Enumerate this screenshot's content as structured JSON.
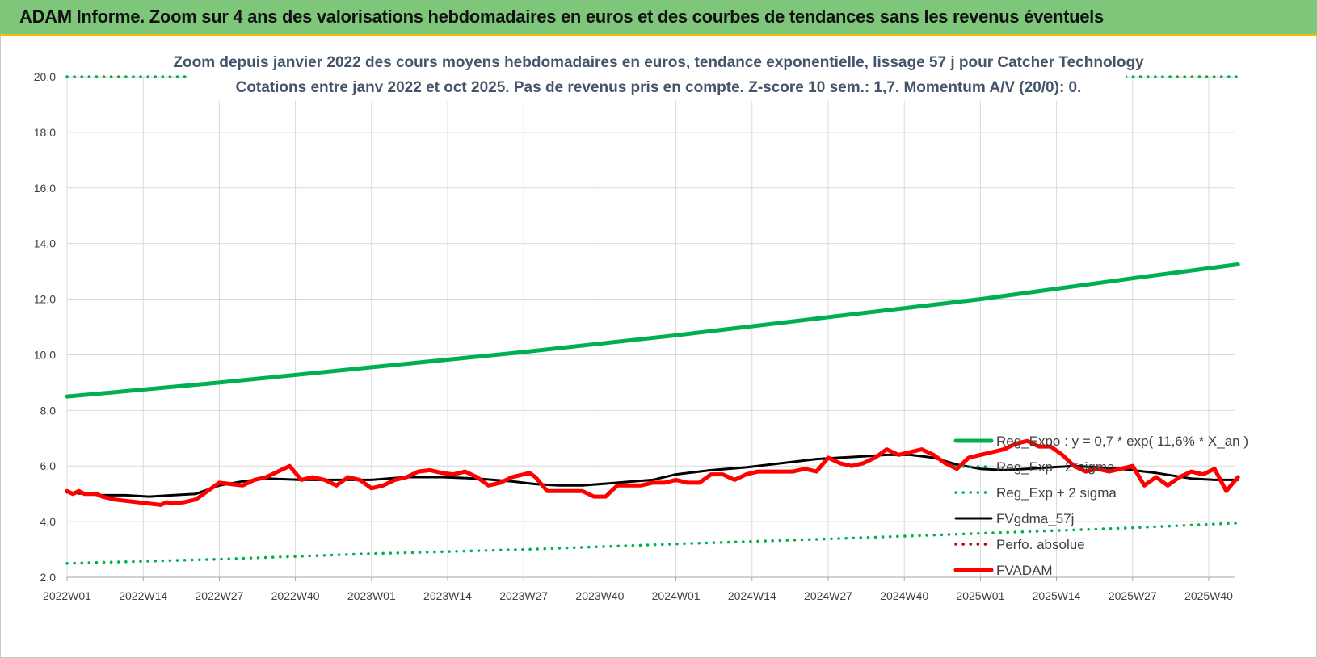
{
  "banner": {
    "title": "ADAM Informe. Zoom sur 4 ans des valorisations hebdomadaires en euros et des courbes de tendances sans les revenus éventuels"
  },
  "colors": {
    "banner_bg": "#7dc67a",
    "trend_green": "#00b050",
    "fvadam_red": "#ff0000",
    "fvgdma_black": "#000000",
    "perf_red": "#c00000",
    "grid": "#d9d9d9"
  },
  "chart_data": {
    "type": "line",
    "title_lines": [
      "Zoom depuis janvier 2022 des cours moyens hebdomadaires en euros, tendance exponentielle, lissage 57 j pour Catcher Technology",
      "Cotations entre janv 2022 et oct 2025. Pas de revenus pris en compte. Z-score 10 sem.: 1,7. Momentum A/V (20/0): 0."
    ],
    "xlabel": "",
    "ylabel": "",
    "ylim": [
      2,
      20
    ],
    "xlim": [
      0,
      195
    ],
    "yticks": [
      "2,0",
      "4,0",
      "6,0",
      "8,0",
      "10,0",
      "12,0",
      "14,0",
      "16,0",
      "18,0",
      "20,0"
    ],
    "ytick_values": [
      2,
      4,
      6,
      8,
      10,
      12,
      14,
      16,
      18,
      20
    ],
    "xticks": [
      "2022W01",
      "2022W14",
      "2022W27",
      "2022W40",
      "2023W01",
      "2023W14",
      "2023W27",
      "2023W40",
      "2024W01",
      "2024W14",
      "2024W27",
      "2024W40",
      "2025W01",
      "2025W14",
      "2025W27",
      "2025W40"
    ],
    "xtick_values": [
      0,
      13,
      26,
      39,
      52,
      65,
      78,
      91,
      104,
      117,
      130,
      143,
      156,
      169,
      182,
      195
    ],
    "grid": true,
    "legend_position": "right",
    "series": [
      {
        "name": "Reg_Expo : y = 0,7 * exp( 11,6% * X_an )",
        "style": "solid-thick",
        "color": "#00b050",
        "x": [
          0,
          26,
          52,
          78,
          104,
          130,
          156,
          182,
          200
        ],
        "values": [
          8.5,
          9.0,
          9.55,
          10.1,
          10.7,
          11.35,
          12.0,
          12.75,
          13.25
        ]
      },
      {
        "name": "Reg_Exp - 2*sigma",
        "style": "dotted",
        "color": "#00b050",
        "x": [
          0,
          26,
          52,
          78,
          104,
          130,
          156,
          182,
          200
        ],
        "values": [
          2.5,
          2.65,
          2.85,
          3.0,
          3.2,
          3.38,
          3.58,
          3.78,
          3.95
        ]
      },
      {
        "name": "Reg_Exp + 2 sigma",
        "style": "dotted",
        "color": "#00b050",
        "x": [
          0,
          200
        ],
        "values": [
          20.0,
          20.0
        ]
      },
      {
        "name": "FVgdma_57j",
        "style": "solid",
        "color": "#000000",
        "x": [
          0,
          6,
          10,
          14,
          18,
          22,
          26,
          30,
          34,
          40,
          46,
          52,
          58,
          64,
          70,
          76,
          80,
          84,
          88,
          94,
          100,
          104,
          110,
          116,
          122,
          128,
          132,
          136,
          140,
          144,
          148,
          152,
          156,
          160,
          164,
          168,
          172,
          176,
          180,
          186,
          192,
          196,
          200
        ],
        "values": [
          5.05,
          4.95,
          4.95,
          4.9,
          4.95,
          5.0,
          5.3,
          5.45,
          5.55,
          5.5,
          5.5,
          5.5,
          5.6,
          5.6,
          5.55,
          5.45,
          5.35,
          5.3,
          5.3,
          5.4,
          5.5,
          5.7,
          5.85,
          5.95,
          6.1,
          6.25,
          6.3,
          6.35,
          6.4,
          6.4,
          6.3,
          6.05,
          5.9,
          5.85,
          5.9,
          5.95,
          6.0,
          5.95,
          5.9,
          5.75,
          5.55,
          5.5,
          5.5
        ]
      },
      {
        "name": "Perfo. absolue",
        "style": "dotted",
        "color": "#c00000",
        "x": [],
        "values": []
      },
      {
        "name": "FVADAM",
        "style": "solid-thick",
        "color": "#ff0000",
        "x": [
          0,
          1,
          2,
          3,
          4,
          5,
          6,
          8,
          10,
          12,
          14,
          16,
          17,
          18,
          20,
          22,
          24,
          26,
          28,
          30,
          32,
          34,
          36,
          38,
          40,
          42,
          44,
          46,
          48,
          50,
          52,
          54,
          56,
          58,
          60,
          62,
          64,
          66,
          68,
          70,
          72,
          74,
          76,
          78,
          79,
          80,
          82,
          84,
          86,
          88,
          90,
          92,
          94,
          96,
          98,
          100,
          102,
          104,
          106,
          108,
          110,
          112,
          114,
          116,
          118,
          120,
          122,
          124,
          126,
          128,
          130,
          132,
          134,
          136,
          138,
          140,
          142,
          144,
          146,
          148,
          150,
          152,
          154,
          156,
          158,
          160,
          162,
          164,
          166,
          168,
          170,
          172,
          174,
          176,
          178,
          180,
          182,
          184,
          186,
          188,
          190,
          192,
          194,
          196,
          198,
          200
        ],
        "values": [
          5.1,
          5.0,
          5.1,
          5.0,
          5.0,
          5.0,
          4.9,
          4.8,
          4.75,
          4.7,
          4.65,
          4.6,
          4.7,
          4.65,
          4.7,
          4.8,
          5.1,
          5.4,
          5.35,
          5.3,
          5.5,
          5.6,
          5.8,
          6.0,
          5.5,
          5.6,
          5.5,
          5.3,
          5.6,
          5.5,
          5.2,
          5.3,
          5.5,
          5.6,
          5.8,
          5.85,
          5.75,
          5.7,
          5.8,
          5.6,
          5.3,
          5.4,
          5.6,
          5.7,
          5.75,
          5.6,
          5.1,
          5.1,
          5.1,
          5.1,
          4.9,
          4.9,
          5.3,
          5.3,
          5.3,
          5.4,
          5.4,
          5.5,
          5.4,
          5.4,
          5.7,
          5.7,
          5.5,
          5.7,
          5.8,
          5.8,
          5.8,
          5.8,
          5.9,
          5.8,
          6.3,
          6.1,
          6.0,
          6.1,
          6.3,
          6.6,
          6.4,
          6.5,
          6.6,
          6.4,
          6.1,
          5.9,
          6.3,
          6.4,
          6.5,
          6.6,
          6.8,
          6.9,
          6.7,
          6.7,
          6.4,
          6.0,
          5.8,
          5.9,
          5.8,
          5.9,
          6.0,
          5.3,
          5.6,
          5.3,
          5.6,
          5.8,
          5.7,
          5.9,
          5.1,
          5.6
        ]
      }
    ]
  }
}
